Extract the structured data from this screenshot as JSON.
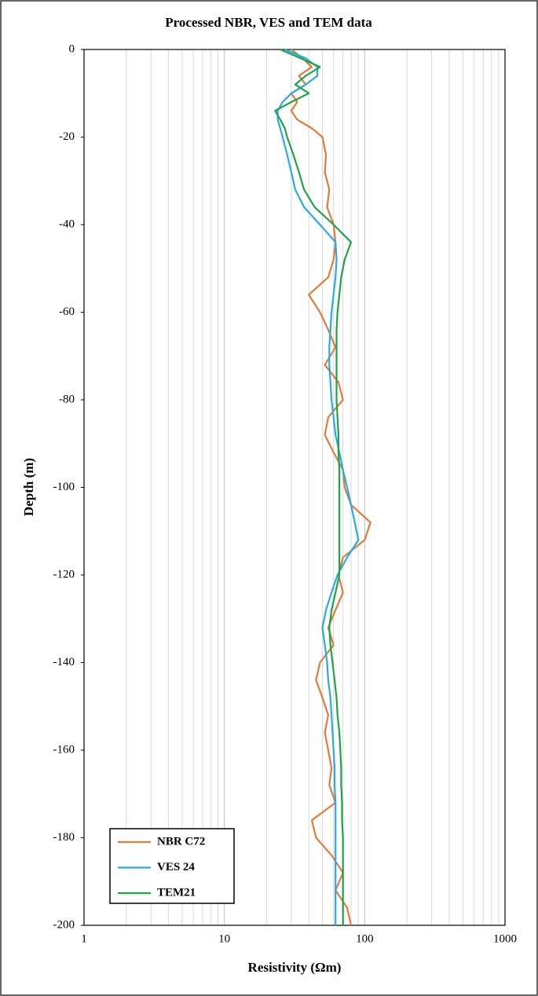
{
  "chart_data": {
    "type": "line",
    "title": "Processed NBR, VES and TEM data",
    "x_label": "Resistivity (Ωm)",
    "y_label": "Depth (m)",
    "xscale": "log",
    "xlim": [
      1,
      1000
    ],
    "xticks": [
      1,
      10,
      100,
      1000
    ],
    "ylim": [
      -200,
      0
    ],
    "yticks": [
      -200,
      -180,
      -160,
      -140,
      -120,
      -100,
      -80,
      -60,
      -40,
      -20,
      0
    ],
    "grid": true,
    "legend": "lower left",
    "depth": [
      0,
      -2,
      -4,
      -6,
      -8,
      -10,
      -12,
      -14,
      -16,
      -18,
      -20,
      -24,
      -28,
      -32,
      -36,
      -40,
      -44,
      -48,
      -52,
      -56,
      -60,
      -64,
      -68,
      -72,
      -76,
      -80,
      -84,
      -88,
      -92,
      -96,
      -100,
      -104,
      -108,
      -112,
      -116,
      -120,
      -124,
      -128,
      -132,
      -136,
      -140,
      -144,
      -148,
      -152,
      -156,
      -160,
      -164,
      -168,
      -172,
      -176,
      -180,
      -184,
      -188,
      -192,
      -196,
      -200
    ],
    "series": [
      {
        "name": "NBR C72",
        "color": "#e07b39",
        "values": [
          30,
          36,
          42,
          34,
          38,
          30,
          33,
          30,
          33,
          42,
          50,
          53,
          52,
          56,
          54,
          60,
          62,
          60,
          55,
          40,
          48,
          55,
          62,
          52,
          65,
          70,
          55,
          52,
          60,
          70,
          72,
          80,
          110,
          100,
          70,
          65,
          70,
          62,
          55,
          60,
          48,
          45,
          50,
          55,
          52,
          55,
          58,
          56,
          62,
          42,
          45,
          58,
          70,
          62,
          75,
          80
        ]
      },
      {
        "name": "VES 24",
        "color": "#29abe2",
        "values": [
          27,
          38,
          46,
          46,
          38,
          30,
          26,
          24,
          24,
          25,
          26,
          28,
          30,
          32,
          37,
          48,
          62,
          63,
          62,
          60,
          58,
          57,
          56,
          56,
          57,
          58,
          60,
          62,
          66,
          70,
          75,
          80,
          85,
          90,
          75,
          64,
          58,
          53,
          50,
          52,
          54,
          55,
          57,
          58,
          59,
          60,
          61,
          61,
          62,
          62,
          62,
          62,
          62,
          62,
          62,
          62
        ]
      },
      {
        "name": "TEM21",
        "color": "#1fa24a",
        "values": [
          25,
          35,
          48,
          38,
          32,
          40,
          30,
          23,
          25,
          27,
          28,
          31,
          34,
          37,
          44,
          60,
          80,
          72,
          68,
          66,
          64,
          63,
          63,
          63,
          63,
          63,
          64,
          65,
          65,
          66,
          66,
          66,
          66,
          66,
          66,
          66,
          62,
          58,
          56,
          57,
          59,
          61,
          63,
          64,
          66,
          67,
          68,
          68,
          69,
          69,
          70,
          70,
          70,
          70,
          70,
          70
        ]
      }
    ]
  }
}
